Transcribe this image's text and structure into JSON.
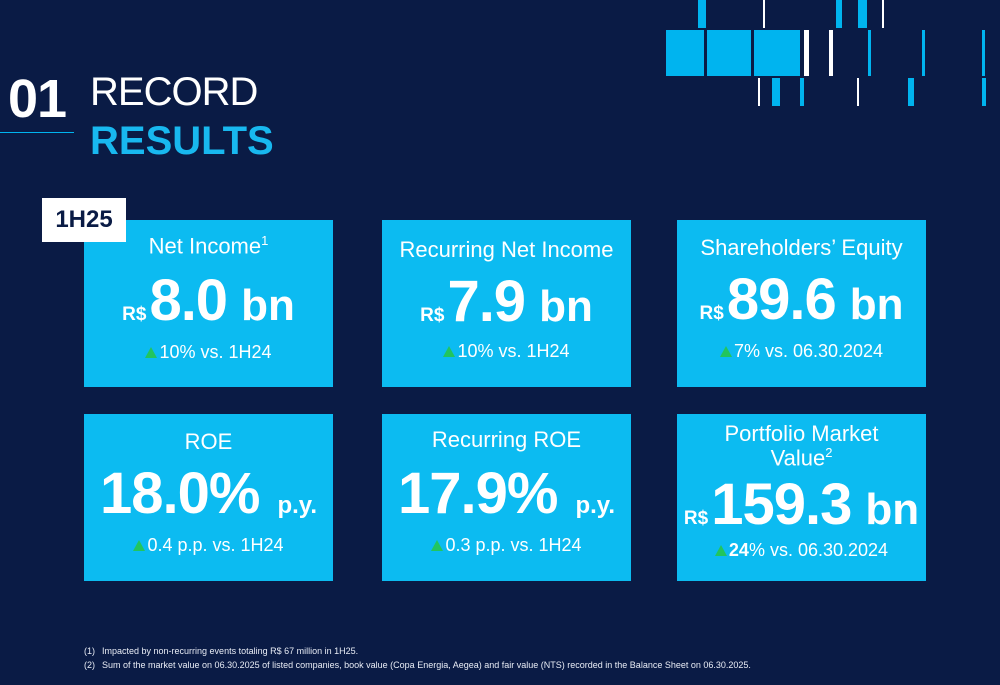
{
  "header": {
    "section_number": "01",
    "title_line1": "RECORD",
    "title_line2": "RESULTS",
    "period_tag": "1H25"
  },
  "cards": [
    {
      "title": "Net Income",
      "title_sup": "1",
      "prefix": "R$",
      "value": "8.0",
      "unit": "bn",
      "delta": "10% vs. 1H24"
    },
    {
      "title": "Recurring Net Income",
      "title_sup": "",
      "prefix": "R$",
      "value": "7.9",
      "unit": "bn",
      "delta": "10% vs. 1H24"
    },
    {
      "title": "Shareholders’ Equity",
      "title_sup": "",
      "prefix": "R$",
      "value": "89.6",
      "unit": "bn",
      "delta": "7% vs. 06.30.2024"
    },
    {
      "title": "ROE",
      "title_sup": "",
      "prefix": "",
      "value": "18.0%",
      "unit": "p.y.",
      "delta": "0.4 p.p. vs. 1H24"
    },
    {
      "title": "Recurring ROE",
      "title_sup": "",
      "prefix": "",
      "value": "17.9%",
      "unit": "p.y.",
      "delta": "0.3 p.p. vs. 1H24"
    },
    {
      "title": "Portfolio Market",
      "title_line2": "Value",
      "title_sup": "2",
      "prefix": "R$",
      "value": "159.3",
      "unit": "bn",
      "delta_bold": "24",
      "delta": "% vs. 06.30.2024"
    }
  ],
  "footnotes": [
    {
      "index": "(1)",
      "text": "Impacted by non-recurring events totaling R$ 67 million in 1H25."
    },
    {
      "index": "(2)",
      "text": "Sum of the market value on 06.30.2025 of listed companies, book value (Copa Energia, Aegea) and fair value (NTS) recorded in the Balance Sheet on 06.30.2025."
    }
  ],
  "colors": {
    "background": "#0a1b45",
    "accent": "#00b4ef",
    "card": "#0cbbf1",
    "up_arrow": "#22c55e"
  }
}
